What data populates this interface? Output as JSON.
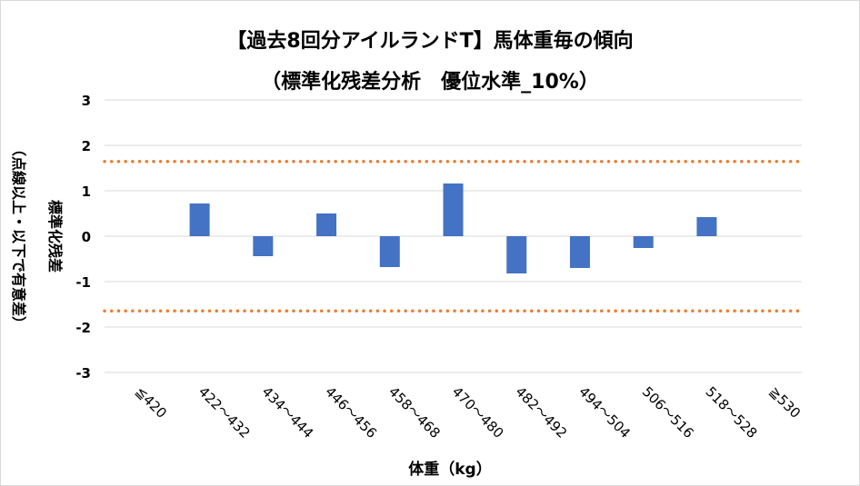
{
  "chart_data": {
    "type": "bar",
    "title": "【過去8回分アイルランドT】馬体重毎の傾向",
    "subtitle": "（標準化残差分析　優位水準_10%）",
    "xlabel": "体重（kg）",
    "ylabel": "標準化残差",
    "ylabel2": "（点線以上・以下で有意差）",
    "ylim": [
      -3,
      3
    ],
    "yticks": [
      "3",
      "2",
      "1",
      "0",
      "-1",
      "-2",
      "-3"
    ],
    "ytick_values": [
      3,
      2,
      1,
      0,
      -1,
      -2,
      -3
    ],
    "grid": true,
    "categories": [
      "≦420",
      "422～432",
      "434～444",
      "446～456",
      "458～468",
      "470～480",
      "482～492",
      "494～504",
      "506～516",
      "518～528",
      "≧530"
    ],
    "values": [
      0,
      0.72,
      -0.44,
      0.5,
      -0.68,
      1.16,
      -0.82,
      -0.7,
      -0.26,
      0.42,
      0
    ],
    "threshold_lines": [
      1.645,
      -1.645
    ],
    "colors": {
      "bar": "#4472c4",
      "threshold": "#ed7d31",
      "grid": "#d9d9d9"
    }
  }
}
